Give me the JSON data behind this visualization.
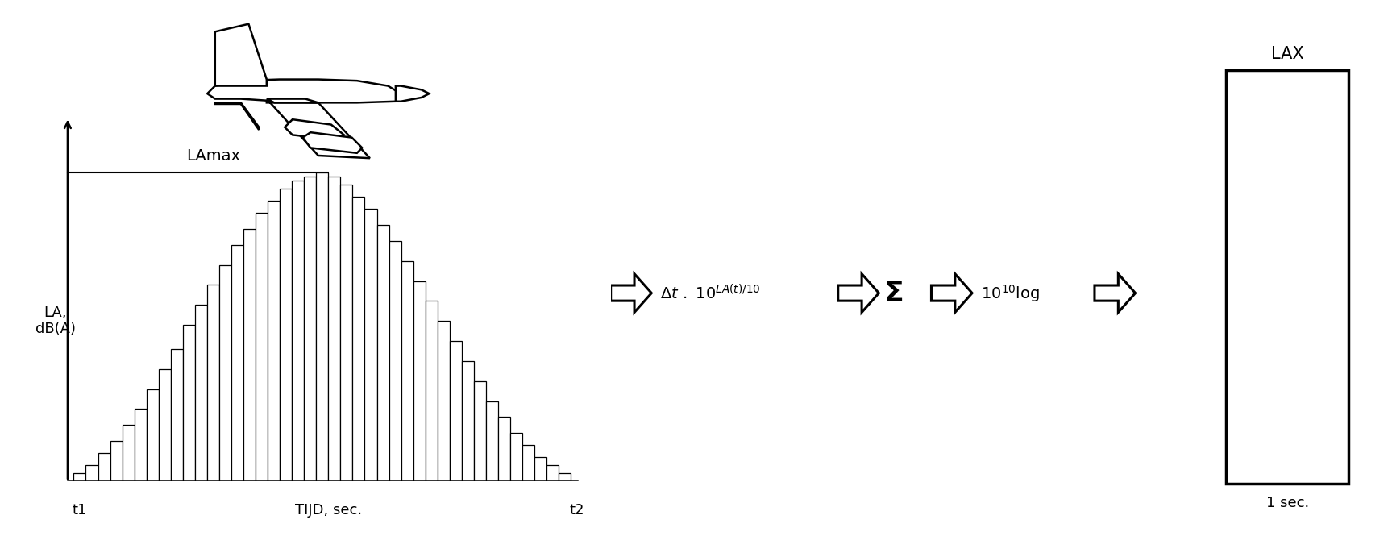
{
  "background_color": "#ffffff",
  "bar_values": [
    2,
    4,
    7,
    10,
    14,
    18,
    23,
    28,
    33,
    39,
    44,
    49,
    54,
    59,
    63,
    67,
    70,
    73,
    75,
    76,
    77,
    76,
    74,
    71,
    68,
    64,
    60,
    55,
    50,
    45,
    40,
    35,
    30,
    25,
    20,
    16,
    12,
    9,
    6,
    4,
    2
  ],
  "bar_color": "#ffffff",
  "bar_edge_color": "#000000",
  "lax_label": "LAX",
  "sec_label": "1 sec.",
  "ylabel_line1": "LA,",
  "ylabel_line2": "dB(A)",
  "xlabel_main": "TIJD, sec.",
  "t1_label": "t1",
  "t2_label": "t2",
  "lamax_label": "LAmax"
}
